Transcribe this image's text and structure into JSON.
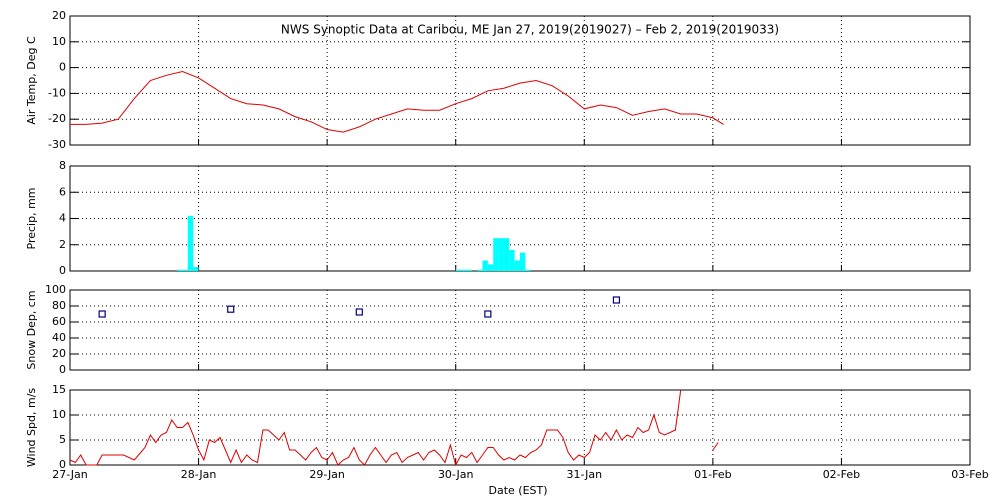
{
  "chart_data": [
    {
      "type": "line",
      "title": "NWS Synoptic Data at Caribou, ME   Jan 27, 2019(2019027) – Feb  2, 2019(2019033)",
      "ylabel": "Air Temp, Deg C",
      "color": "#e00000",
      "xlim": [
        0,
        168
      ],
      "xticks": [
        0,
        24,
        48,
        72,
        96,
        120,
        144,
        168
      ],
      "ylim": [
        -30,
        20
      ],
      "yticks": [
        -30,
        -20,
        -10,
        0,
        10,
        20
      ],
      "grid": true,
      "x": [
        0,
        3,
        6,
        9,
        12,
        15,
        18,
        21,
        24,
        27,
        30,
        33,
        36,
        39,
        42,
        45,
        48,
        51,
        54,
        57,
        60,
        63,
        66,
        69,
        72,
        75,
        78,
        81,
        84,
        87,
        90,
        93,
        96,
        99,
        102,
        105,
        108,
        111,
        114,
        117,
        120,
        122
      ],
      "values": [
        -22,
        -22,
        -21.5,
        -20,
        -12,
        -5,
        -3,
        -1.5,
        -4,
        -8,
        -12,
        -14,
        -14.5,
        -16,
        -19,
        -21,
        -24,
        -25,
        -23,
        -20,
        -18,
        -16,
        -16.5,
        -16.5,
        -14,
        -12,
        -9,
        -8,
        -6,
        -5,
        -7,
        -11,
        -16,
        -14.5,
        -15.5,
        -18.5,
        -17,
        -16,
        -18,
        -18,
        -19.5,
        -22
      ]
    },
    {
      "type": "histogram",
      "ylabel": "Precip, mm",
      "color": "#00ffff",
      "xlim": [
        0,
        168
      ],
      "xticks": [
        0,
        24,
        48,
        72,
        96,
        120,
        144,
        168
      ],
      "ylim": [
        0,
        8
      ],
      "yticks": [
        0,
        2,
        4,
        6,
        8
      ],
      "grid": true,
      "bins": [
        20,
        21,
        22,
        23,
        24,
        25,
        26,
        27,
        28,
        29,
        30,
        31,
        32,
        33,
        34,
        35,
        36,
        37,
        38,
        39,
        40,
        41,
        42,
        43,
        44,
        45,
        46,
        47,
        48,
        49,
        50,
        51,
        52,
        53,
        54,
        55,
        56,
        57,
        58,
        59,
        60,
        61,
        62,
        63,
        64,
        65,
        66,
        67,
        68,
        69,
        70,
        71,
        72,
        73,
        74,
        75,
        76,
        77,
        78,
        79,
        80,
        81,
        82,
        83,
        84,
        85,
        86
      ],
      "values": [
        0.1,
        0.1,
        4.2,
        0.3,
        0,
        0,
        0,
        0,
        0,
        0,
        0,
        0,
        0,
        0,
        0,
        0,
        0,
        0,
        0,
        0,
        0,
        0,
        0,
        0,
        0,
        0,
        0,
        0,
        0,
        0,
        0,
        0,
        0,
        0,
        0,
        0,
        0,
        0,
        0,
        0,
        0,
        0,
        0,
        0,
        0,
        0,
        0,
        0,
        0,
        0,
        0,
        0,
        0.1,
        0.1,
        0.1,
        0,
        0.1,
        0.8,
        0.5,
        2.5,
        2.5,
        2.5,
        1.6,
        0.8,
        1.4,
        0.1
      ]
    },
    {
      "type": "scatter",
      "ylabel": "Snow Dep, cm",
      "color": "#000080",
      "xlim": [
        0,
        168
      ],
      "xticks": [
        0,
        24,
        48,
        72,
        96,
        120,
        144,
        168
      ],
      "ylim": [
        0,
        100
      ],
      "yticks": [
        0,
        20,
        40,
        60,
        80,
        100
      ],
      "grid": true,
      "x": [
        6,
        30,
        54,
        78,
        102
      ],
      "values": [
        70,
        76,
        72.5,
        70,
        87.5
      ]
    },
    {
      "type": "line",
      "ylabel": "Wind Spd, m/s",
      "xlabel": "Date (EST)",
      "color": "#e00000",
      "xlim": [
        0,
        168
      ],
      "xticks": [
        {
          "value": 0,
          "label": "27-Jan"
        },
        {
          "value": 24,
          "label": "28-Jan"
        },
        {
          "value": 48,
          "label": "29-Jan"
        },
        {
          "value": 72,
          "label": "30-Jan"
        },
        {
          "value": 96,
          "label": "31-Jan"
        },
        {
          "value": 120,
          "label": "01-Feb"
        },
        {
          "value": 144,
          "label": "02-Feb"
        },
        {
          "value": 168,
          "label": "03-Feb"
        }
      ],
      "ylim": [
        0,
        15
      ],
      "yticks": [
        0,
        5,
        10,
        15
      ],
      "grid": true,
      "x": [
        0,
        1,
        2,
        3,
        4,
        5,
        6,
        8,
        10,
        12,
        14,
        15,
        16,
        17,
        18,
        19,
        20,
        21,
        22,
        23,
        24,
        25,
        26,
        27,
        28,
        29,
        30,
        31,
        32,
        33,
        34,
        35,
        36,
        37,
        38,
        39,
        40,
        41,
        42,
        43,
        44,
        45,
        46,
        47,
        48,
        49,
        50,
        51,
        52,
        53,
        54,
        55,
        56,
        57,
        58,
        59,
        60,
        61,
        62,
        63,
        64,
        65,
        66,
        67,
        68,
        69,
        70,
        71,
        72,
        73,
        74,
        75,
        76,
        77,
        78,
        79,
        80,
        81,
        82,
        83,
        84,
        85,
        86,
        87,
        88,
        89,
        90,
        91,
        92,
        93,
        94,
        95,
        96,
        97,
        98,
        99,
        100,
        101,
        102,
        103,
        104,
        105,
        106,
        107,
        108,
        109,
        110,
        111,
        112,
        113,
        114,
        117,
        120,
        121
      ],
      "values": [
        1,
        0.5,
        2,
        0,
        0,
        0,
        2,
        2,
        2,
        1,
        3.5,
        6,
        4.5,
        6,
        6.5,
        9,
        7.5,
        7.5,
        8.5,
        6,
        3,
        1,
        5,
        4.5,
        5.5,
        3,
        0.5,
        3,
        0.5,
        2,
        1,
        0.5,
        7,
        7,
        6,
        5,
        6.5,
        3,
        3,
        2,
        1,
        2.5,
        3.5,
        1.5,
        1,
        2.5,
        0,
        1,
        1.5,
        3.5,
        1,
        0,
        2,
        3.5,
        2,
        0.5,
        2,
        2.5,
        0.5,
        1.5,
        2,
        2.5,
        1,
        2.5,
        3,
        2,
        0.5,
        4,
        0,
        2,
        1.5,
        2.5,
        0.5,
        2,
        3.5,
        3.5,
        2,
        1,
        1.5,
        1,
        2,
        1.5,
        2.5,
        3,
        4,
        7,
        7,
        7,
        5.5,
        2.5,
        1,
        2,
        1.5,
        2.5,
        6,
        5,
        6.5,
        5,
        7,
        5,
        6,
        5.5,
        7.5,
        6.5,
        7,
        10,
        6.5,
        6,
        6.5,
        7,
        15,
        null,
        3,
        4.5
      ]
    }
  ]
}
